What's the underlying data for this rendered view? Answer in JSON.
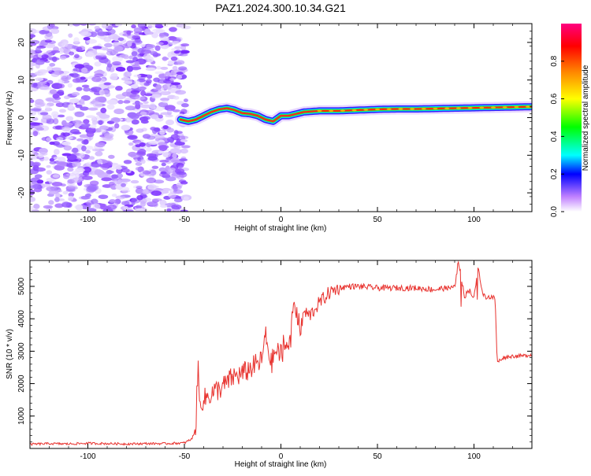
{
  "figure_title": "PAZ1.2024.300.10.34.G21",
  "chart_data": [
    {
      "type": "heatmap",
      "title": "PAZ1.2024.300.10.34.G21",
      "xlabel": "Height of straight line (km)",
      "ylabel": "Frequency (Hz)",
      "xlim": [
        -130,
        130
      ],
      "ylim": [
        -25,
        25
      ],
      "x_ticks": [
        -100,
        -50,
        0,
        50,
        100
      ],
      "x_tick_labels": [
        "-100",
        "-50",
        "0",
        "50",
        "100"
      ],
      "y_ticks": [
        -20,
        -10,
        0,
        10,
        20
      ],
      "y_tick_labels": [
        "-20",
        "-10",
        "0",
        "10",
        "20"
      ],
      "noise_region_x": [
        -130,
        -49
      ],
      "signal_track": {
        "x": [
          -52,
          -48,
          -44,
          -40,
          -36,
          -32,
          -28,
          -24,
          -20,
          -16,
          -12,
          -8,
          -4,
          0,
          4,
          8,
          12,
          20,
          30,
          40,
          50,
          60,
          70,
          80,
          90,
          100,
          110,
          120,
          130
        ],
        "frequency": [
          -0.5,
          -1.0,
          -0.5,
          0.5,
          1.5,
          2.2,
          2.5,
          2.0,
          1.2,
          1.0,
          0.5,
          -0.5,
          -1.0,
          0.5,
          0.5,
          1.0,
          1.5,
          1.8,
          1.8,
          2.0,
          2.2,
          2.3,
          2.3,
          2.4,
          2.5,
          2.6,
          2.7,
          2.8,
          2.9
        ]
      },
      "colorbar": {
        "label": "Normalized spectral amplitude",
        "range": [
          0,
          1
        ],
        "ticks": [
          0.0,
          0.2,
          0.4,
          0.6,
          0.8
        ],
        "tick_labels": [
          "0.0",
          "0.2",
          "0.4",
          "0.6",
          "0.8"
        ],
        "colormap": [
          "#e5e5ff",
          "#8000ff",
          "#0000ff",
          "#00ffff",
          "#00ff00",
          "#ffff00",
          "#ff8000",
          "#ff0000",
          "#ff0080"
        ]
      },
      "grid": false
    },
    {
      "type": "line",
      "xlabel": "Height of straight line (km)",
      "ylabel": "SNR (10 * v/v)",
      "xlim": [
        -130,
        130
      ],
      "ylim": [
        0,
        5800
      ],
      "x_ticks": [
        -100,
        -50,
        0,
        50,
        100
      ],
      "x_tick_labels": [
        "-100",
        "-50",
        "0",
        "50",
        "100"
      ],
      "y_ticks": [
        1000,
        2000,
        3000,
        4000,
        5000
      ],
      "y_tick_labels": [
        "1000",
        "2000",
        "3000",
        "4000",
        "5000"
      ],
      "color": "#e8332f",
      "grid": false,
      "series": [
        {
          "x": [
            -130,
            -120,
            -110,
            -100,
            -90,
            -80,
            -70,
            -60,
            -50,
            -46,
            -44,
            -43,
            -42,
            -41,
            -40,
            -36,
            -30,
            -25,
            -20,
            -15,
            -10,
            -8,
            -5,
            -3,
            0,
            3,
            5,
            7,
            10,
            12,
            15,
            20,
            25,
            30,
            35,
            40,
            50,
            60,
            70,
            80,
            85,
            90,
            92,
            95,
            98,
            100,
            102,
            105,
            110,
            111,
            112,
            115,
            120,
            125,
            130
          ],
          "y": [
            130,
            150,
            140,
            160,
            150,
            140,
            150,
            150,
            170,
            300,
            700,
            2650,
            1200,
            1500,
            1500,
            1700,
            1900,
            2200,
            2300,
            2500,
            2700,
            3500,
            2600,
            3000,
            2900,
            3300,
            3400,
            4600,
            3600,
            4200,
            4100,
            4500,
            4800,
            4950,
            5000,
            5000,
            4950,
            4950,
            4950,
            4900,
            4950,
            4950,
            5800,
            4700,
            4900,
            4600,
            5600,
            4700,
            4650,
            4600,
            2650,
            2800,
            2850,
            2850,
            2900
          ]
        }
      ]
    }
  ]
}
